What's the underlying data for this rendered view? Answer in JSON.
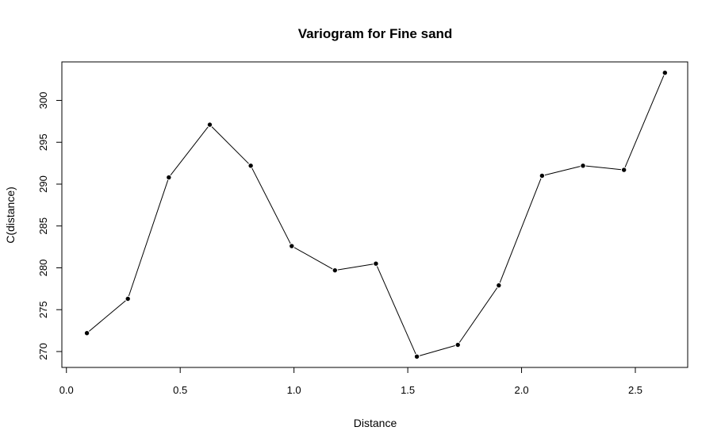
{
  "chart_data": {
    "type": "line",
    "title": "Variogram for Fine sand",
    "xlabel": "Distance",
    "ylabel": "C(distance)",
    "xlim": [
      -0.02,
      2.73
    ],
    "ylim": [
      268.1,
      304.6
    ],
    "x_ticks": [
      0.0,
      0.5,
      1.0,
      1.5,
      2.0,
      2.5
    ],
    "x_tick_labels": [
      "0.0",
      "0.5",
      "1.0",
      "1.5",
      "2.0",
      "2.5"
    ],
    "y_ticks": [
      270,
      275,
      280,
      285,
      290,
      295,
      300
    ],
    "y_tick_labels": [
      "270",
      "275",
      "280",
      "285",
      "290",
      "295",
      "300"
    ],
    "grid": false,
    "series": [
      {
        "x": [
          0.09,
          0.27,
          0.45,
          0.63,
          0.81,
          0.99,
          1.18,
          1.36,
          1.54,
          1.72,
          1.9,
          2.09,
          2.27,
          2.45,
          2.63
        ],
        "y": [
          272.2,
          276.3,
          290.8,
          297.1,
          292.2,
          282.6,
          279.7,
          280.5,
          269.4,
          270.8,
          277.9,
          291.0,
          292.2,
          291.7,
          303.3
        ]
      }
    ]
  }
}
